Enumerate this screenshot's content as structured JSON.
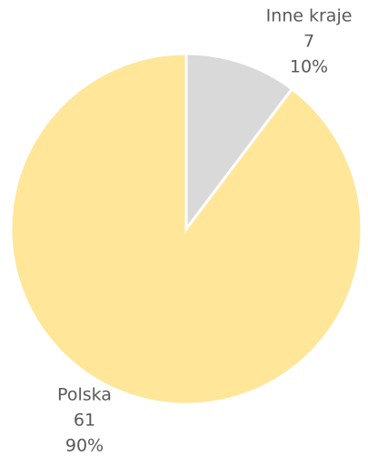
{
  "chart_data": {
    "type": "pie",
    "categories": [
      "Inne kraje",
      "Polska"
    ],
    "values": [
      7,
      61
    ],
    "percent_labels": [
      "10%",
      "90%"
    ],
    "colors": [
      "#d9d9d9",
      "#ffe699"
    ]
  }
}
